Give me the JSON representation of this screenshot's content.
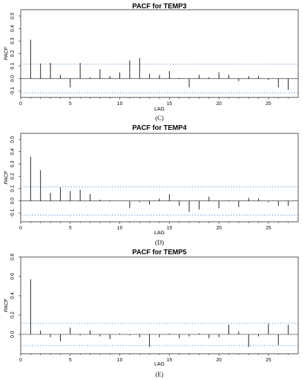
{
  "chart_data": [
    {
      "type": "bar",
      "title": "PACF for TEMP3",
      "xlabel": "LAG",
      "ylabel": "PACF",
      "caption": "(C)",
      "xlim": [
        0,
        28
      ],
      "ylim": [
        -0.15,
        0.55
      ],
      "yticks": [
        "-0.1",
        "0.0",
        "0.1",
        "0.2",
        "0.3",
        "0.4",
        "0.5"
      ],
      "xticks": [
        "0",
        "5",
        "10",
        "15",
        "20",
        "25"
      ],
      "confidence_band": 0.115,
      "x": [
        1,
        2,
        3,
        4,
        5,
        6,
        7,
        8,
        9,
        10,
        11,
        12,
        13,
        14,
        15,
        16,
        17,
        18,
        19,
        20,
        21,
        22,
        23,
        24,
        25,
        26,
        27
      ],
      "values": [
        0.31,
        0.12,
        0.125,
        0.03,
        -0.07,
        0.125,
        0.01,
        0.075,
        0.02,
        0.05,
        0.145,
        0.165,
        0.04,
        0.03,
        0.06,
        0.005,
        -0.07,
        0.03,
        0.01,
        0.05,
        0.03,
        -0.02,
        0.02,
        0.02,
        -0.01,
        -0.07,
        -0.09
      ]
    },
    {
      "type": "bar",
      "title": "PACF for TEMP4",
      "xlabel": "LAG",
      "ylabel": "PACF",
      "caption": "(D)",
      "xlim": [
        0,
        28
      ],
      "ylim": [
        -0.17,
        0.55
      ],
      "yticks": [
        "-0.1",
        "0.0",
        "0.1",
        "0.2",
        "0.3",
        "0.4",
        "0.5"
      ],
      "xticks": [
        "0",
        "5",
        "10",
        "15",
        "20",
        "25"
      ],
      "confidence_band": 0.115,
      "x": [
        1,
        2,
        3,
        4,
        5,
        6,
        7,
        8,
        9,
        10,
        11,
        12,
        13,
        14,
        15,
        16,
        17,
        18,
        19,
        20,
        21,
        22,
        23,
        24,
        25,
        26,
        27
      ],
      "values": [
        0.36,
        0.25,
        0.065,
        0.11,
        0.08,
        0.09,
        0.055,
        0.01,
        0.005,
        0.0,
        -0.06,
        -0.01,
        -0.03,
        0.02,
        0.055,
        -0.04,
        -0.09,
        -0.07,
        0.035,
        -0.06,
        0.005,
        -0.05,
        0.025,
        0.02,
        -0.01,
        -0.04,
        -0.04
      ]
    },
    {
      "type": "bar",
      "title": "PACF for TEMP5",
      "xlabel": "LAG",
      "ylabel": "PACF",
      "caption": "(E)",
      "xlim": [
        0,
        28
      ],
      "ylim": [
        -0.2,
        0.8
      ],
      "yticks": [
        "0.0",
        "0.2",
        "0.4",
        "0.6",
        "0.8"
      ],
      "xticks": [
        "0",
        "5",
        "10",
        "15",
        "20",
        "25"
      ],
      "confidence_band": 0.115,
      "x": [
        1,
        2,
        3,
        4,
        5,
        6,
        7,
        8,
        9,
        10,
        11,
        12,
        13,
        14,
        15,
        16,
        17,
        18,
        19,
        20,
        21,
        22,
        23,
        24,
        25,
        26,
        27
      ],
      "values": [
        0.57,
        0.04,
        -0.03,
        -0.07,
        0.07,
        -0.01,
        0.04,
        -0.02,
        -0.05,
        0.01,
        -0.01,
        -0.03,
        -0.13,
        -0.03,
        0.01,
        -0.04,
        -0.02,
        0.01,
        -0.04,
        -0.03,
        0.1,
        0.03,
        -0.13,
        -0.02,
        0.11,
        -0.11,
        0.1
      ]
    }
  ]
}
